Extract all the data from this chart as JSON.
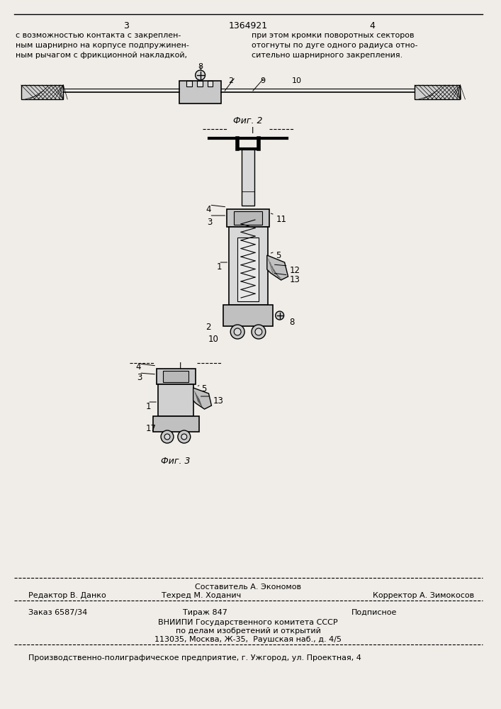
{
  "page_width": 7.07,
  "page_height": 10.0,
  "bg_color": "#f0ede8",
  "header_col1": "3",
  "header_center": "1364921",
  "header_col2": "4",
  "text_left": "с возможностью контакта с закреплен-\nным шарнирно на корпусе подпружинен-\nным рычагом с фрикционной накладкой,",
  "text_right": "при этом кромки поворотных секторов\nотогнуты по дуге одного радиуса отно-\nсительно шарнирного закрепления.",
  "fig2_label": "Фиг. 2",
  "fig3_label": "Фиг. 3",
  "footer_line1": "Составитель А. Экономов",
  "footer_left1": "Редактор В. Данко",
  "footer_mid1": "Техред М. Ходанич",
  "footer_right1": "Корректор А. Зимокосов",
  "footer_line3": "Заказ 6587/34",
  "footer_line3b": "Тираж 847",
  "footer_line3c": "Подписное",
  "footer_line4": "ВНИИПИ Государственного комитета СССР",
  "footer_line5": "по делам изобретений и открытий",
  "footer_line6": "113035, Москва, Ж-35,  Раушская наб., д. 4/5",
  "footer_line7": "Производственно-полиграфическое предприятие, г. Ужгород, ул. Проектная, 4"
}
